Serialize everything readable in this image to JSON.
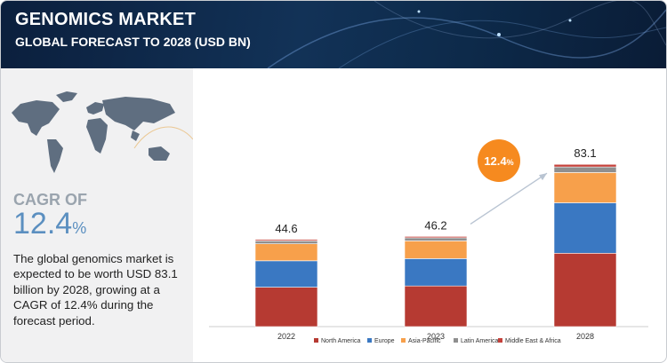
{
  "header": {
    "title": "GENOMICS MARKET",
    "subtitle": "GLOBAL FORECAST TO 2028 (USD BN)"
  },
  "sidebar": {
    "cagr_label": "CAGR OF",
    "cagr_value": "12.4",
    "cagr_percent": "%",
    "description": "The global genomics market is expected to be worth USD 83.1 billion by 2028, growing at a CAGR of 12.4% during the forecast period."
  },
  "cagr_badge": {
    "value": "12.4",
    "percent": "%"
  },
  "colors": {
    "north_america": "#b63a32",
    "europe": "#3a78c2",
    "asia_pacific": "#f7a04b",
    "latin_america": "#8f8f8f",
    "middle_east_africa": "#c5413b",
    "badge": "#f68a1f"
  },
  "chart_data": {
    "type": "bar",
    "stacked": true,
    "title": "Genomics Market, Global Forecast to 2028 (USD BN)",
    "categories": [
      "2022",
      "2023",
      "2028"
    ],
    "totals": [
      44.6,
      46.2,
      83.1
    ],
    "series": [
      {
        "name": "North America",
        "values": [
          20.2,
          20.8,
          37.6
        ]
      },
      {
        "name": "Europe",
        "values": [
          13.5,
          14.0,
          25.8
        ]
      },
      {
        "name": "Asia-Pacific",
        "values": [
          8.7,
          9.1,
          15.5
        ]
      },
      {
        "name": "Latin America",
        "values": [
          1.5,
          1.6,
          2.9
        ]
      },
      {
        "name": "Middle East & Africa",
        "values": [
          0.7,
          0.7,
          1.3
        ]
      }
    ],
    "legend_position": "bottom",
    "ylim": [
      0,
      100
    ]
  }
}
